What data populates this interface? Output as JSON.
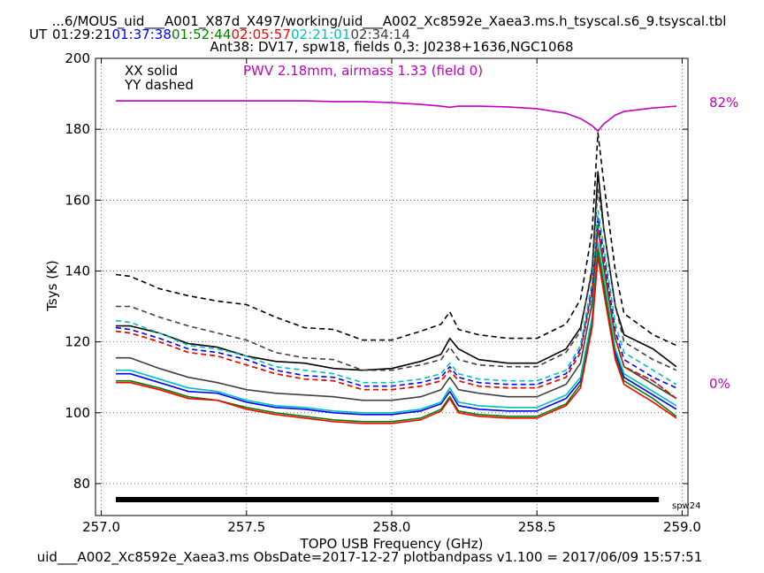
{
  "header": {
    "path": "...6/MOUS_uid___A001_X87d_X497/working/uid___A002_Xc8592e_Xaea3.ms.h_tsyscal.s6_9.tsyscal.tbl",
    "ut_label": "UT",
    "times": [
      {
        "text": "01:29:21",
        "color": "#000000"
      },
      {
        "text": "01:37:38",
        "color": "#0000ff"
      },
      {
        "text": "01:52:44",
        "color": "#008000"
      },
      {
        "text": "02:05:57",
        "color": "#ff0000"
      },
      {
        "text": "02:21:01",
        "color": "#00bfbf"
      },
      {
        "text": "02:34:14",
        "color": "#404040"
      }
    ],
    "subtitle": "Ant38: DV17,  spw18,  fields 0,3: J0238+1636,NGC1068"
  },
  "legend": {
    "solid": "XX solid",
    "dashed": "YY dashed",
    "pwv": "PWV 2.18mm, airmass 1.33 (field 0)"
  },
  "footer": "uid___A002_Xc8592e_Xaea3.ms  ObsDate=2017-12-27   plotbandpass v1.100 = 2017/06/09 15:57:51",
  "colors": {
    "pwv": "#bf00bf"
  },
  "chart_data": {
    "type": "line",
    "xlabel": "TOPO USB Frequency (GHz)",
    "ylabel": "Tsys (K)",
    "xlim": [
      256.98,
      259.02
    ],
    "ylim": [
      71,
      200
    ],
    "xticks": [
      "257.0",
      "257.5",
      "258.0",
      "258.5",
      "259.0"
    ],
    "yticks": [
      "80",
      "100",
      "120",
      "140",
      "160",
      "180",
      "200"
    ],
    "grid": true,
    "x": [
      257.05,
      257.1,
      257.2,
      257.3,
      257.4,
      257.5,
      257.6,
      257.7,
      257.8,
      257.9,
      258.0,
      258.1,
      258.17,
      258.2,
      258.23,
      258.3,
      258.4,
      258.5,
      258.6,
      258.65,
      258.69,
      258.71,
      258.73,
      258.77,
      258.8,
      258.9,
      258.98
    ],
    "series": [
      {
        "color": "#000000",
        "dash": false,
        "values": [
          124.5,
          124.5,
          122.5,
          119.5,
          118.5,
          116,
          114.5,
          114,
          112.5,
          112,
          112.5,
          114.5,
          116.5,
          121,
          118,
          115,
          114,
          114,
          118,
          124,
          140,
          168,
          152,
          130,
          122,
          118,
          113
        ]
      },
      {
        "color": "#000000",
        "dash": true,
        "values": [
          139,
          138.5,
          135,
          133,
          131.5,
          130.5,
          127,
          124,
          123.5,
          120.5,
          120.5,
          123,
          125,
          128.5,
          123.5,
          122,
          121,
          121,
          125,
          132,
          151,
          179,
          165,
          140,
          128,
          122,
          119
        ]
      },
      {
        "color": "#404040",
        "dash": false,
        "values": [
          115.5,
          115.5,
          112.5,
          110,
          108.5,
          106.5,
          105.5,
          105,
          104.5,
          103.5,
          103.5,
          104.5,
          106.5,
          110,
          106.5,
          105.5,
          104.5,
          104.5,
          108,
          114,
          131,
          152,
          141,
          121,
          113,
          108,
          104
        ]
      },
      {
        "color": "#404040",
        "dash": true,
        "values": [
          130,
          130,
          127,
          124.5,
          122.5,
          120.5,
          117,
          115.5,
          115,
          112,
          112,
          113.5,
          115,
          118.5,
          115,
          113.5,
          113,
          113,
          117,
          123,
          141,
          163,
          152,
          130,
          120,
          115,
          112
        ]
      },
      {
        "color": "#0000ff",
        "dash": false,
        "values": [
          111,
          111,
          108.5,
          106,
          105.5,
          103,
          101.5,
          101,
          100,
          99.5,
          99.5,
          100.5,
          102.5,
          106,
          102,
          101,
          100.5,
          100.5,
          104,
          109,
          126,
          147,
          137,
          117,
          110,
          105,
          101
        ]
      },
      {
        "color": "#0000ff",
        "dash": true,
        "values": [
          124,
          123.5,
          121,
          118,
          117,
          115,
          112,
          110.5,
          110,
          107.5,
          107.5,
          108.5,
          110,
          113,
          110,
          108.5,
          108,
          108,
          111,
          118,
          135,
          155,
          145,
          123,
          115,
          110,
          107
        ]
      },
      {
        "color": "#00bfbf",
        "dash": false,
        "values": [
          112,
          112,
          109.5,
          107,
          106,
          103.5,
          102,
          101.5,
          100.5,
          100,
          100,
          101,
          103,
          107,
          103,
          102,
          101.5,
          101.5,
          105,
          110,
          127,
          148,
          138,
          118,
          111,
          106,
          102
        ]
      },
      {
        "color": "#00bfbf",
        "dash": true,
        "values": [
          126,
          125.5,
          122.5,
          119,
          118,
          116,
          113,
          112,
          111,
          108.5,
          108.5,
          109.5,
          111,
          114,
          111,
          109.5,
          109,
          109,
          112,
          119,
          137,
          157,
          147,
          125,
          117,
          112,
          108
        ]
      },
      {
        "color": "#008000",
        "dash": false,
        "values": [
          109,
          109,
          107,
          104.5,
          103.5,
          101.5,
          100,
          99,
          98,
          97.5,
          97.5,
          98.5,
          101,
          104.5,
          100.5,
          99.5,
          99,
          99,
          102.5,
          108,
          125,
          146,
          136,
          116,
          109,
          104,
          99
        ]
      },
      {
        "color": "#008000",
        "dash": true,
        "values": [
          123,
          122.5,
          120,
          117,
          116,
          113.5,
          111,
          109.5,
          109,
          106.5,
          106.5,
          107.5,
          109,
          112,
          109,
          107.5,
          107,
          107,
          110,
          117,
          134,
          153,
          143,
          121,
          113,
          109,
          104
        ]
      },
      {
        "color": "#ff0000",
        "dash": false,
        "values": [
          108.5,
          108.5,
          106.5,
          104,
          103.5,
          101,
          99.5,
          98.5,
          97.5,
          97,
          97,
          98,
          100.5,
          104,
          100,
          99,
          98.5,
          98.5,
          102,
          107,
          124,
          144,
          134,
          115,
          108,
          103,
          98.5
        ]
      },
      {
        "color": "#ff0000",
        "dash": true,
        "values": [
          123,
          122.5,
          120,
          117,
          116,
          113.5,
          111,
          109.5,
          109,
          106.5,
          106.5,
          107.5,
          109,
          112,
          109,
          107.5,
          107,
          107,
          110,
          117,
          134,
          152,
          142,
          121,
          113,
          109,
          104
        ]
      },
      {
        "color": "#bf00bf",
        "dash": false,
        "values": [
          188,
          188,
          188,
          188,
          188,
          188,
          188,
          188,
          187.8,
          187.8,
          187.5,
          187,
          186.5,
          186.2,
          186.5,
          186.5,
          186.3,
          185.8,
          184.5,
          183,
          181,
          179.5,
          181.5,
          184,
          185,
          186,
          186.5
        ]
      }
    ],
    "pwv_axis_labels": {
      "top": "82%",
      "bottom": "0%"
    },
    "spw_label": "spw24",
    "spw_bar_range": [
      257.05,
      258.92
    ]
  }
}
